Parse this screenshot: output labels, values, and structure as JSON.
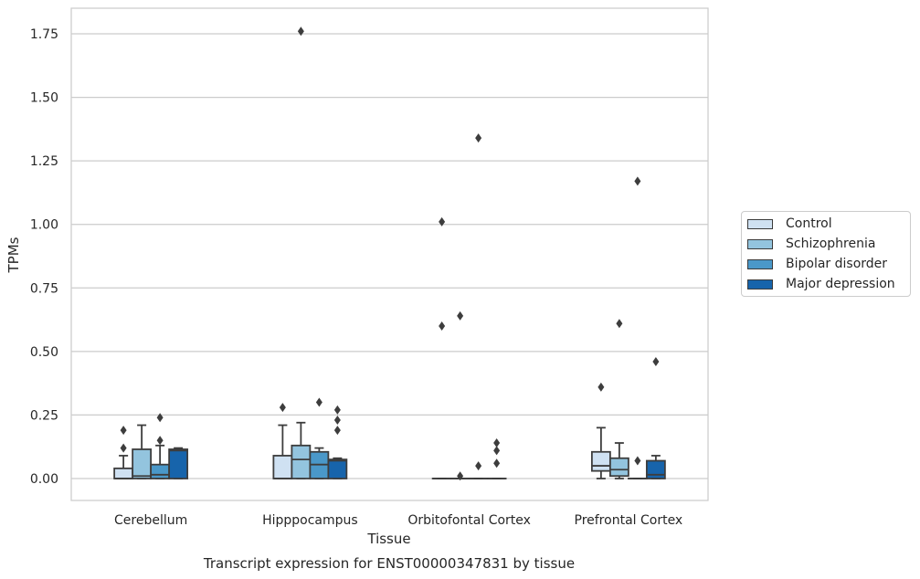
{
  "chart_data": {
    "type": "box",
    "title": "Transcript expression for ENST00000347831 by tissue",
    "xlabel": "Tissue",
    "ylabel": "TPMs",
    "ylim": [
      -0.085,
      1.85
    ],
    "yticks": [
      "0.00",
      "0.25",
      "0.50",
      "0.75",
      "1.00",
      "1.25",
      "1.50",
      "1.75"
    ],
    "grid": true,
    "legend_position": "right",
    "categories": [
      "Cerebellum",
      "Hipppocampus",
      "Orbitofontal Cortex",
      "Prefrontal Cortex"
    ],
    "series": [
      {
        "name": "Control",
        "color": "#cfe1f2",
        "boxes": [
          {
            "whisker_low": 0.0,
            "q1": 0.0,
            "median": 0.0,
            "q3": 0.04,
            "whisker_high": 0.09,
            "outliers": [
              0.12,
              0.19
            ]
          },
          {
            "whisker_low": 0.0,
            "q1": 0.0,
            "median": 0.0,
            "q3": 0.09,
            "whisker_high": 0.21,
            "outliers": [
              0.28
            ]
          },
          {
            "whisker_low": 0.0,
            "q1": 0.0,
            "median": 0.0,
            "q3": 0.0,
            "whisker_high": 0.0,
            "outliers": [
              0.6,
              1.01
            ]
          },
          {
            "whisker_low": 0.0,
            "q1": 0.03,
            "median": 0.05,
            "q3": 0.105,
            "whisker_high": 0.2,
            "outliers": [
              0.36
            ]
          }
        ]
      },
      {
        "name": "Schizophrenia",
        "color": "#93c4de",
        "boxes": [
          {
            "whisker_low": 0.0,
            "q1": 0.0,
            "median": 0.01,
            "q3": 0.115,
            "whisker_high": 0.21,
            "outliers": []
          },
          {
            "whisker_low": 0.0,
            "q1": 0.0,
            "median": 0.075,
            "q3": 0.13,
            "whisker_high": 0.22,
            "outliers": [
              1.76
            ]
          },
          {
            "whisker_low": 0.0,
            "q1": 0.0,
            "median": 0.0,
            "q3": 0.0,
            "whisker_high": 0.0,
            "outliers": [
              0.01,
              0.64
            ]
          },
          {
            "whisker_low": 0.0,
            "q1": 0.01,
            "median": 0.035,
            "q3": 0.08,
            "whisker_high": 0.14,
            "outliers": [
              0.61
            ]
          }
        ]
      },
      {
        "name": "Bipolar disorder",
        "color": "#4a98c9",
        "boxes": [
          {
            "whisker_low": 0.0,
            "q1": 0.0,
            "median": 0.015,
            "q3": 0.055,
            "whisker_high": 0.13,
            "outliers": [
              0.15,
              0.24
            ]
          },
          {
            "whisker_low": 0.0,
            "q1": 0.0,
            "median": 0.055,
            "q3": 0.105,
            "whisker_high": 0.12,
            "outliers": [
              0.3
            ]
          },
          {
            "whisker_low": 0.0,
            "q1": 0.0,
            "median": 0.0,
            "q3": 0.0,
            "whisker_high": 0.0,
            "outliers": [
              0.05,
              1.34
            ]
          },
          {
            "whisker_low": 0.0,
            "q1": 0.0,
            "median": 0.0,
            "q3": 0.0,
            "whisker_high": 0.0,
            "outliers": [
              0.07,
              1.17
            ]
          }
        ]
      },
      {
        "name": "Major depression",
        "color": "#1764ab",
        "boxes": [
          {
            "whisker_low": 0.0,
            "q1": 0.0,
            "median": 0.11,
            "q3": 0.115,
            "whisker_high": 0.12,
            "outliers": []
          },
          {
            "whisker_low": 0.0,
            "q1": 0.0,
            "median": 0.07,
            "q3": 0.075,
            "whisker_high": 0.08,
            "outliers": [
              0.19,
              0.23,
              0.27
            ]
          },
          {
            "whisker_low": 0.0,
            "q1": 0.0,
            "median": 0.0,
            "q3": 0.0,
            "whisker_high": 0.0,
            "outliers": [
              0.06,
              0.11,
              0.14
            ]
          },
          {
            "whisker_low": 0.0,
            "q1": 0.0,
            "median": 0.015,
            "q3": 0.07,
            "whisker_high": 0.09,
            "outliers": [
              0.46
            ]
          }
        ]
      }
    ]
  }
}
